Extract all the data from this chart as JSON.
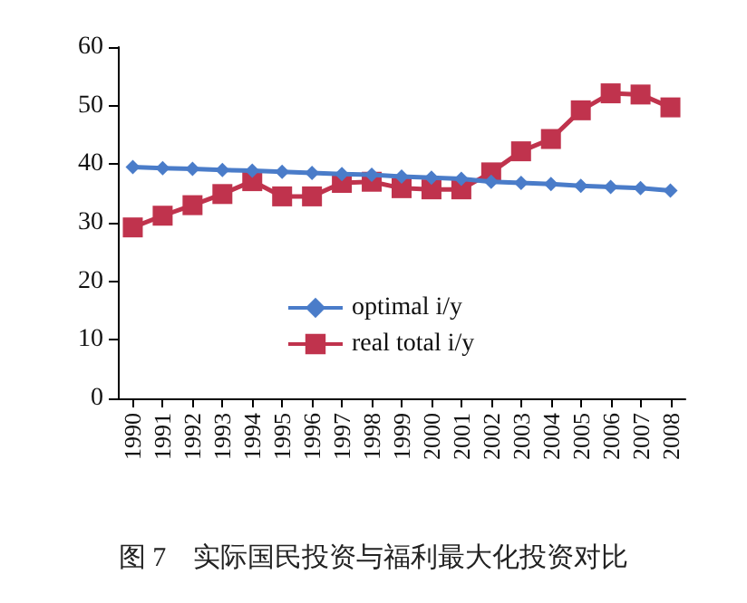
{
  "chart_data": {
    "type": "line",
    "title": "图 7　实际国民投资与福利最大化投资对比",
    "categories": [
      "1990",
      "1991",
      "1992",
      "1993",
      "1994",
      "1995",
      "1996",
      "1997",
      "1998",
      "1999",
      "2000",
      "2001",
      "2002",
      "2003",
      "2004",
      "2005",
      "2006",
      "2007",
      "2008"
    ],
    "series": [
      {
        "name": "optimal i/y",
        "color": "#4a7cc9",
        "marker": "diamond",
        "values": [
          39.5,
          39.3,
          39.2,
          39.0,
          38.9,
          38.7,
          38.5,
          38.3,
          38.2,
          37.9,
          37.7,
          37.5,
          37.0,
          36.8,
          36.6,
          36.3,
          36.1,
          35.9,
          35.5
        ]
      },
      {
        "name": "real total i/y",
        "color": "#c0334d",
        "marker": "square",
        "values": [
          29.2,
          31.2,
          33.0,
          34.9,
          37.1,
          34.5,
          34.5,
          36.8,
          37.0,
          35.9,
          35.7,
          35.7,
          38.6,
          42.2,
          44.3,
          49.2,
          52.1,
          51.9,
          49.7
        ]
      }
    ],
    "ylim": [
      0,
      60
    ],
    "yticks": [
      0,
      10,
      20,
      30,
      40,
      50,
      60
    ],
    "grid": false,
    "legend": "bottom"
  }
}
